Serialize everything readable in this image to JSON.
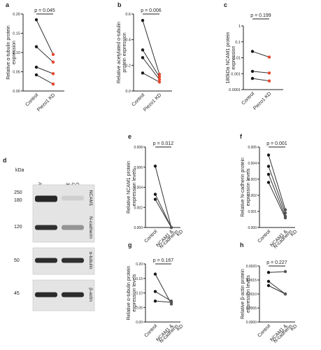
{
  "colors": {
    "control": "#1a1a1a",
    "treated": "#e8452c",
    "text": "#222222",
    "band": "#1c1c1c"
  },
  "panels": [
    {
      "letter": "a",
      "ylabel": "Relative α-tubulin protein\nexpression",
      "stat": "p = 0.045",
      "categories": [
        "Control",
        "Piezo1 KD"
      ],
      "cat_colors": [
        "#222222",
        "#e8452c"
      ],
      "ticks": [
        "0.00",
        "0.05",
        "0.10",
        "0.15",
        "0.20"
      ]
    },
    {
      "letter": "b",
      "ylabel": "Relative acetylated α-tubulin\nprotein expression",
      "stat": "p = 0.006",
      "categories": [
        "Control",
        "Piezo1 KD"
      ],
      "cat_colors": [
        "#222222",
        "#e8452c"
      ],
      "ticks": [
        "0.0",
        "0.2",
        "0.4",
        "0.6"
      ]
    },
    {
      "letter": "c",
      "ylabel": "180kDa NCAM1 protein\nexpression",
      "stat": "p = 0.199",
      "categories": [
        "Control",
        "Piezo1 KD"
      ],
      "cat_colors": [
        "#222222",
        "#e8452c"
      ],
      "ticks": [
        "0.0001",
        "0.001",
        "0.01",
        "0.1",
        "1"
      ]
    },
    {
      "letter": "e",
      "ylabel": "Relative NCAM1 protein\nexpression levels",
      "stat": "p = 0.012",
      "categories": [
        "Control",
        "NCAM1 &\nN-cadherin\nKD"
      ],
      "cat_colors": [
        "#222222",
        "#888888"
      ],
      "ticks": [
        "0.000",
        "0.002",
        "0.004",
        "0.006",
        "0.008"
      ]
    },
    {
      "letter": "f",
      "ylabel": "Relative N-cadherin protein\nexpression levels",
      "stat": "p = 0.001",
      "categories": [
        "Control",
        "NCAM1 &\nN-cadherin\nKD"
      ],
      "cat_colors": [
        "#222222",
        "#888888"
      ],
      "ticks": [
        "0.000",
        "0.001",
        "0.002",
        "0.003",
        "0.004",
        "0.005"
      ]
    },
    {
      "letter": "g",
      "ylabel": "Relative α-tubulin protein\nexpression levels",
      "stat": "p = 0.167",
      "categories": [
        "Control",
        "NCAM1 &\nN-cadherin\nKD"
      ],
      "cat_colors": [
        "#222222",
        "#888888"
      ],
      "ticks": [
        "0.00",
        "0.05",
        "0.10",
        "0.15",
        "0.20"
      ]
    },
    {
      "letter": "h",
      "ylabel": "Relative β-actin protein\nexpression levels",
      "stat": "p = 0.227",
      "categories": [
        "Control",
        "NCAM1 &\nN-cadherin\nKD"
      ],
      "cat_colors": [
        "#222222",
        "#888888"
      ],
      "ticks": [
        "0.0000",
        "0.0005",
        "0.0010",
        "0.0015",
        "0.0020"
      ]
    }
  ],
  "chart_data": [
    {
      "panel": "a",
      "type": "scatter",
      "x": [
        "Control",
        "Piezo1 KD"
      ],
      "ylim": [
        0,
        0.2
      ],
      "series": [
        {
          "values": [
            0.185,
            0.095
          ]
        },
        {
          "values": [
            0.115,
            0.075
          ]
        },
        {
          "values": [
            0.062,
            0.045
          ]
        },
        {
          "values": [
            0.042,
            0.018
          ]
        }
      ]
    },
    {
      "panel": "b",
      "type": "scatter",
      "x": [
        "Control",
        "Piezo1 KD"
      ],
      "ylim": [
        0,
        0.6
      ],
      "series": [
        {
          "values": [
            0.55,
            0.13
          ]
        },
        {
          "values": [
            0.32,
            0.11
          ]
        },
        {
          "values": [
            0.26,
            0.09
          ]
        },
        {
          "values": [
            0.14,
            0.07
          ]
        }
      ]
    },
    {
      "panel": "c",
      "type": "scatter",
      "x": [
        "Control",
        "Piezo1 KD"
      ],
      "ylim": [
        0.0001,
        1
      ],
      "yscale": "log",
      "series": [
        {
          "values": [
            0.025,
            0.011
          ]
        },
        {
          "values": [
            0.0014,
            0.0011
          ]
        },
        {
          "values": [
            0.0005,
            0.00035
          ]
        }
      ]
    },
    {
      "panel": "e",
      "type": "scatter",
      "x": [
        "Control",
        "NCAM1 & N-cadherin KD"
      ],
      "ylim": [
        0,
        0.008
      ],
      "series": [
        {
          "values": [
            0.0061,
            0.0
          ]
        },
        {
          "values": [
            0.0033,
            0.0
          ]
        },
        {
          "values": [
            0.0028,
            0.0
          ]
        }
      ]
    },
    {
      "panel": "f",
      "type": "scatter",
      "x": [
        "Control",
        "NCAM1 & N-cadherin KD"
      ],
      "ylim": [
        0,
        0.005
      ],
      "series": [
        {
          "values": [
            0.0045,
            0.0011
          ]
        },
        {
          "values": [
            0.0038,
            0.0009
          ]
        },
        {
          "values": [
            0.0033,
            0.0007
          ]
        },
        {
          "values": [
            0.0028,
            0.0006
          ]
        }
      ]
    },
    {
      "panel": "g",
      "type": "scatter",
      "x": [
        "Control",
        "NCAM1 & N-cadherin KD"
      ],
      "ylim": [
        0,
        0.2
      ],
      "series": [
        {
          "values": [
            0.165,
            0.062
          ]
        },
        {
          "values": [
            0.105,
            0.072
          ]
        },
        {
          "values": [
            0.072,
            0.068
          ]
        }
      ]
    },
    {
      "panel": "h",
      "type": "scatter",
      "x": [
        "Control",
        "NCAM1 & N-cadherin KD"
      ],
      "ylim": [
        0,
        0.002
      ],
      "series": [
        {
          "values": [
            0.00177,
            0.0018
          ]
        },
        {
          "values": [
            0.00145,
            0.001
          ]
        },
        {
          "values": [
            0.0013,
            0.001
          ]
        }
      ]
    }
  ],
  "blot": {
    "letter": "d",
    "unit": "kDa",
    "columns": [
      "Control",
      "NCAM1 &\nN-cadherin\nKD"
    ],
    "markers": [
      "250",
      "180",
      "120",
      "50",
      "45"
    ],
    "rows": [
      {
        "label": "NCAM1",
        "control": 0.95,
        "kd": 0.1
      },
      {
        "label": "N-cadherin",
        "control": 0.9,
        "kd": 0.4
      },
      {
        "label": "α-tubulin",
        "control": 0.92,
        "kd": 0.9
      },
      {
        "label": "β-actin",
        "control": 0.93,
        "kd": 0.92
      }
    ]
  }
}
